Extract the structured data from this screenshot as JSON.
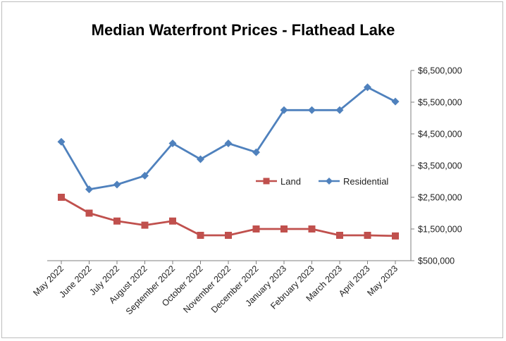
{
  "chart_data": {
    "type": "line",
    "title": "Median Waterfront Prices - Flathead Lake",
    "xlabel": "",
    "ylabel": "",
    "categories": [
      "May 2022",
      "June 2022",
      "July 2022",
      "August 2022",
      "September 2022",
      "October 2022",
      "November 2022",
      "December 2022",
      "January 2023",
      "February 2023",
      "March 2023",
      "April 2023",
      "May 2023"
    ],
    "ylim": [
      500000,
      6500000
    ],
    "yticks": [
      500000,
      1500000,
      2500000,
      3500000,
      4500000,
      5500000,
      6500000
    ],
    "ytick_labels": [
      "$500,000",
      "$1,500,000",
      "$2,500,000",
      "$3,500,000",
      "$4,500,000",
      "$5,500,000",
      "$6,500,000"
    ],
    "y_axis_side": "right",
    "grid": false,
    "legend_position": "center-right",
    "series": [
      {
        "name": "Land",
        "marker": "square",
        "color": "#c0504d",
        "values": [
          2500000,
          2000000,
          1750000,
          1620000,
          1750000,
          1300000,
          1300000,
          1500000,
          1500000,
          1500000,
          1300000,
          1300000,
          1280000
        ]
      },
      {
        "name": "Residential",
        "marker": "diamond",
        "color": "#4f81bd",
        "values": [
          4250000,
          2750000,
          2900000,
          3180000,
          4200000,
          3700000,
          4200000,
          3920000,
          5250000,
          5250000,
          5250000,
          5970000,
          5520000
        ]
      }
    ]
  }
}
